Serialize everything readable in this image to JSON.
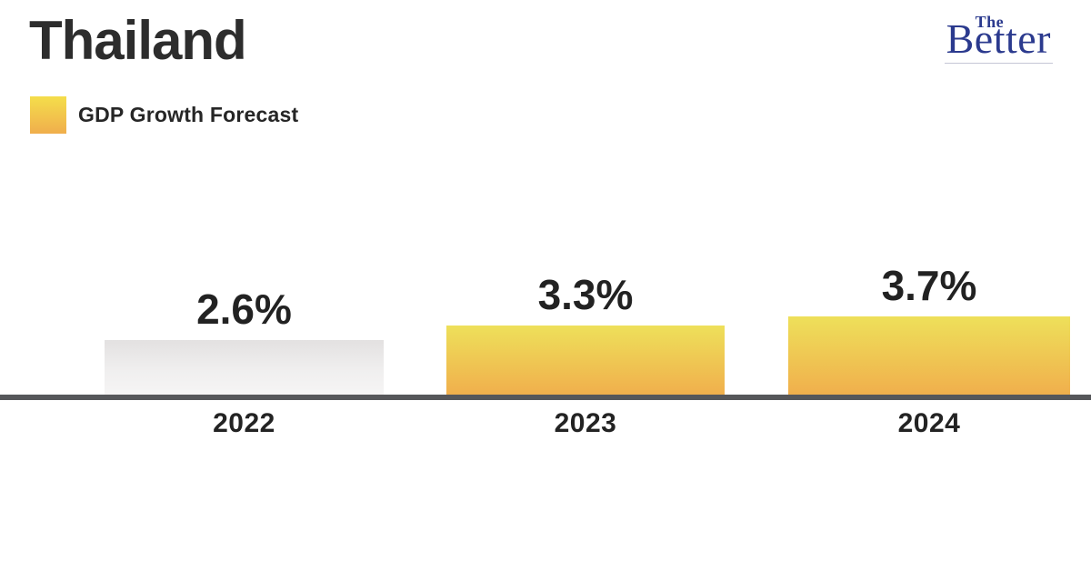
{
  "header": {
    "title": "Thailand",
    "legend": {
      "label": "GDP Growth Forecast",
      "swatch_color_top": "#f4de4b",
      "swatch_color_bottom": "#f0ae4c"
    }
  },
  "logo": {
    "line1": "The",
    "line2": "Better",
    "color": "#2b3a8e"
  },
  "chart_data": {
    "type": "bar",
    "title": "Thailand",
    "subtitle": "GDP Growth Forecast",
    "categories": [
      "2022",
      "2023",
      "2024"
    ],
    "values": [
      2.6,
      3.3,
      3.7
    ],
    "value_labels": [
      "2.6%",
      "3.3%",
      "3.7%"
    ],
    "series": [
      {
        "name": "GDP Growth Forecast",
        "values": [
          2.6,
          3.3,
          3.7
        ]
      }
    ],
    "xlabel": "",
    "ylabel": "",
    "ylim": [
      0,
      4
    ],
    "grid": false,
    "legend_position": "top-left",
    "bar_styles": [
      {
        "kind": "gray",
        "top": "#e3e1e1",
        "bottom": "#f6f5f5"
      },
      {
        "kind": "yellow",
        "top": "#eee05a",
        "bottom": "#f0ae4c"
      },
      {
        "kind": "yellow",
        "top": "#eee05a",
        "bottom": "#f0ae4c"
      }
    ],
    "baseline_color": "#56575a"
  }
}
